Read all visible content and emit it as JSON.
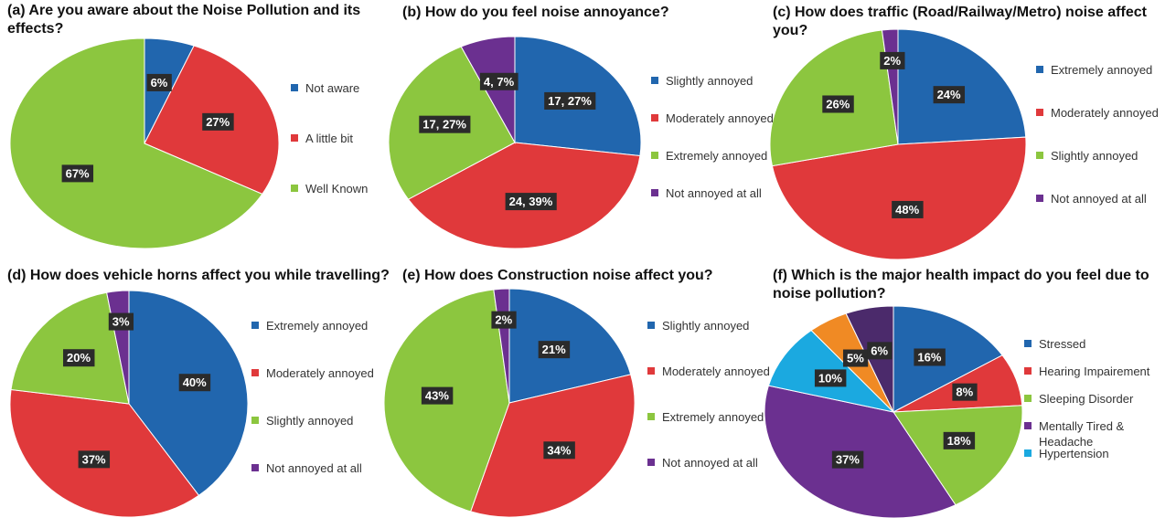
{
  "chart_data": [
    {
      "type": "pie",
      "title": "(a) Are you aware about the Noise Pollution and its effects?",
      "categories": [
        "Not aware",
        "A little bit",
        "Well Known"
      ],
      "values": [
        6,
        27,
        67
      ],
      "value_labels": [
        "6%",
        "27%",
        "67%"
      ],
      "colors": [
        "#2166ae",
        "#e0393b",
        "#8cc63f"
      ]
    },
    {
      "type": "pie",
      "title": "(b) How do you feel noise annoyance?",
      "categories": [
        "Slightly annoyed",
        "Moderately annoyed",
        "Extremely annoyed",
        "Not annoyed at all"
      ],
      "values": [
        27,
        39,
        27,
        7
      ],
      "value_labels": [
        "17, 27%",
        "24, 39%",
        "17, 27%",
        "4, 7%"
      ],
      "colors": [
        "#2166ae",
        "#e0393b",
        "#8cc63f",
        "#6b3090"
      ]
    },
    {
      "type": "pie",
      "title": "(c) How does traffic (Road/Railway/Metro) noise affect you?",
      "categories": [
        "Extremely annoyed",
        "Moderately annoyed",
        "Slightly annoyed",
        "Not annoyed at all"
      ],
      "values": [
        24,
        48,
        26,
        2
      ],
      "value_labels": [
        "24%",
        "48%",
        "26%",
        "2%"
      ],
      "colors": [
        "#2166ae",
        "#e0393b",
        "#8cc63f",
        "#6b3090"
      ]
    },
    {
      "type": "pie",
      "title": "(d) How does vehicle horns affect you while travelling?",
      "categories": [
        "Extremely annoyed",
        "Moderately annoyed",
        "Slightly annoyed",
        "Not annoyed at all"
      ],
      "values": [
        40,
        37,
        20,
        3
      ],
      "value_labels": [
        "40%",
        "37%",
        "20%",
        "3%"
      ],
      "colors": [
        "#2166ae",
        "#e0393b",
        "#8cc63f",
        "#6b3090"
      ]
    },
    {
      "type": "pie",
      "title": "(e) How does Construction noise affect you?",
      "categories": [
        "Slightly annoyed",
        "Moderately annoyed",
        "Extremely annoyed",
        "Not annoyed at all"
      ],
      "values": [
        21,
        34,
        43,
        2
      ],
      "value_labels": [
        "21%",
        "34%",
        "43%",
        "2%"
      ],
      "colors": [
        "#2166ae",
        "#e0393b",
        "#8cc63f",
        "#6b3090"
      ]
    },
    {
      "type": "pie",
      "title": "(f) Which is the major health impact do you feel due to noise pollution?",
      "categories": [
        "Stressed",
        "Hearing Impairement",
        "Sleeping Disorder",
        "Mentally Tired & Headache",
        "Hypertension",
        null,
        null
      ],
      "values": [
        16,
        8,
        18,
        37,
        10,
        5,
        6
      ],
      "value_labels": [
        "16%",
        "8%",
        "18%",
        "37%",
        "10%",
        "5%",
        "6%"
      ],
      "colors": [
        "#2166ae",
        "#e0393b",
        "#8cc63f",
        "#6b3090",
        "#1ba9e0",
        "#f08a24",
        "#4b2a6b"
      ]
    }
  ]
}
